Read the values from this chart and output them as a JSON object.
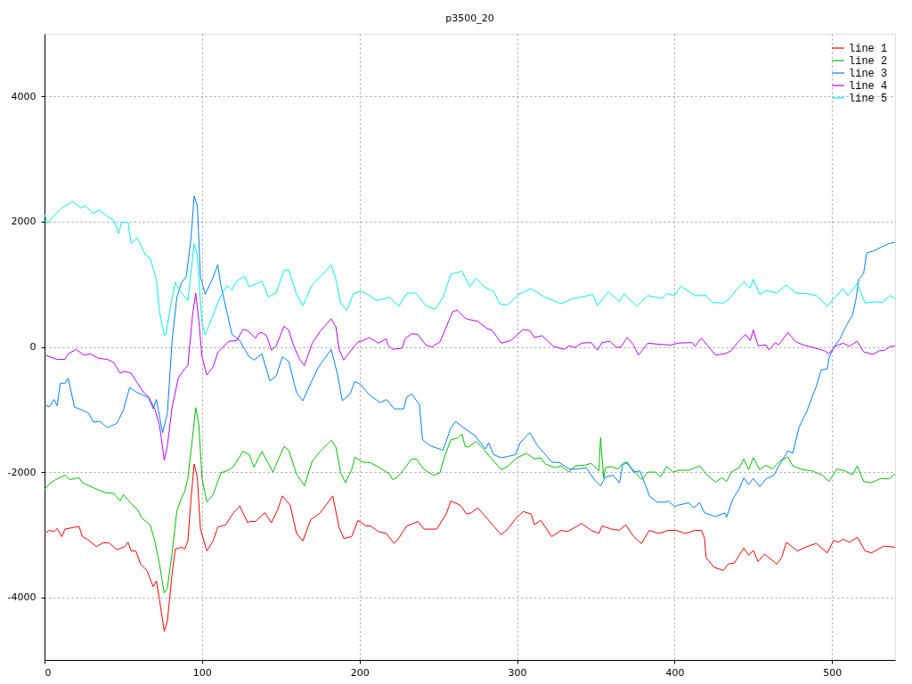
{
  "chart_data": {
    "type": "line",
    "title": "p3500_20",
    "xlim": [
      0,
      540
    ],
    "xticks": [
      0,
      100,
      200,
      300,
      400,
      500
    ],
    "ylim": [
      -5000,
      5000
    ],
    "yticks": [
      -4000,
      -2000,
      0,
      2000,
      4000
    ],
    "grid": true,
    "legend": "top right",
    "line_style": "solid",
    "series": [
      {
        "name": "line 1",
        "color": "#ff0000",
        "x": [
          0,
          3,
          6,
          8,
          11,
          13,
          19,
          22,
          24,
          27,
          33,
          37,
          41,
          46,
          51,
          53,
          55,
          58,
          61,
          65,
          69,
          71,
          73,
          76,
          78,
          81,
          83,
          87,
          89,
          91,
          93,
          95,
          97,
          99,
          103,
          107,
          110,
          115,
          120,
          124,
          129,
          130,
          134,
          137,
          140,
          144,
          148,
          151,
          156,
          160,
          164,
          169,
          175,
          183,
          187,
          190,
          195,
          199,
          204,
          207,
          212,
          217,
          222,
          225,
          230,
          237,
          241,
          249,
          255,
          258,
          264,
          268,
          271,
          275,
          281,
          285,
          290,
          294,
          300,
          304,
          309,
          311,
          315,
          322,
          328,
          332,
          337,
          341,
          347,
          352,
          354,
          360,
          365,
          369,
          374,
          379,
          384,
          390,
          396,
          401,
          407,
          413,
          417,
          419,
          420,
          425,
          431,
          434,
          438,
          444,
          447,
          450,
          453,
          457,
          465,
          468,
          471,
          478,
          484,
          490,
          497,
          501,
          504,
          507,
          511,
          516,
          521,
          525,
          533,
          540
        ],
        "values": [
          -2980,
          -2930,
          -2950,
          -2900,
          -3030,
          -2910,
          -2880,
          -2870,
          -3030,
          -3070,
          -3190,
          -3130,
          -3130,
          -3240,
          -3190,
          -3120,
          -3260,
          -3260,
          -3470,
          -3570,
          -3830,
          -3740,
          -4040,
          -4540,
          -4380,
          -3620,
          -3230,
          -3200,
          -3230,
          -3100,
          -2430,
          -1870,
          -2080,
          -2910,
          -3260,
          -3100,
          -2880,
          -2840,
          -2650,
          -2540,
          -2810,
          -2790,
          -2790,
          -2710,
          -2650,
          -2810,
          -2600,
          -2380,
          -2530,
          -2980,
          -3100,
          -2760,
          -2650,
          -2380,
          -2880,
          -3060,
          -3030,
          -2770,
          -2860,
          -2860,
          -2950,
          -2980,
          -3140,
          -3050,
          -2860,
          -2790,
          -2910,
          -2910,
          -2670,
          -2460,
          -2530,
          -2670,
          -2650,
          -2570,
          -2740,
          -2860,
          -3000,
          -2910,
          -2720,
          -2630,
          -2670,
          -2840,
          -2770,
          -3030,
          -2930,
          -2950,
          -2880,
          -2820,
          -2930,
          -2980,
          -2860,
          -2910,
          -2930,
          -2840,
          -3030,
          -3140,
          -2930,
          -2980,
          -2930,
          -2930,
          -2980,
          -2930,
          -2930,
          -3050,
          -3360,
          -3520,
          -3570,
          -3470,
          -3450,
          -3210,
          -3330,
          -3250,
          -3430,
          -3310,
          -3470,
          -3360,
          -3120,
          -3260,
          -3190,
          -3140,
          -3290,
          -3090,
          -3120,
          -3070,
          -3120,
          -3040,
          -3260,
          -3290,
          -3180,
          -3200
        ]
      },
      {
        "name": "line 2",
        "color": "#00c000",
        "x": [
          0,
          4,
          7,
          13,
          16,
          22,
          24,
          33,
          39,
          44,
          48,
          50,
          55,
          59,
          62,
          67,
          70,
          73,
          76,
          78,
          81,
          84,
          87,
          89,
          91,
          94,
          96,
          98,
          100,
          103,
          107,
          112,
          116,
          120,
          126,
          130,
          133,
          138,
          145,
          152,
          155,
          160,
          165,
          170,
          175,
          182,
          185,
          188,
          191,
          195,
          197,
          202,
          207,
          214,
          219,
          221,
          224,
          228,
          233,
          236,
          241,
          247,
          251,
          254,
          258,
          262,
          265,
          267,
          269,
          274,
          279,
          284,
          290,
          294,
          300,
          306,
          311,
          315,
          318,
          324,
          328,
          333,
          337,
          343,
          347,
          352,
          353,
          355,
          356,
          360,
          364,
          368,
          371,
          375,
          379,
          383,
          388,
          391,
          395,
          399,
          403,
          409,
          416,
          420,
          426,
          430,
          433,
          436,
          441,
          444,
          447,
          450,
          454,
          458,
          462,
          467,
          472,
          475,
          481,
          487,
          494,
          498,
          503,
          508,
          513,
          516,
          520,
          525,
          531,
          536,
          540
        ],
        "values": [
          -2270,
          -2170,
          -2120,
          -2050,
          -2120,
          -2090,
          -2170,
          -2270,
          -2330,
          -2340,
          -2460,
          -2360,
          -2500,
          -2600,
          -2740,
          -2840,
          -3100,
          -3470,
          -3930,
          -3850,
          -3290,
          -2620,
          -2410,
          -2310,
          -2100,
          -1440,
          -970,
          -1250,
          -2100,
          -2480,
          -2360,
          -2010,
          -1980,
          -1910,
          -1670,
          -1720,
          -1920,
          -1670,
          -2000,
          -1590,
          -1650,
          -2030,
          -2220,
          -1820,
          -1670,
          -1490,
          -1600,
          -2010,
          -2170,
          -1960,
          -1760,
          -1840,
          -1850,
          -1950,
          -2030,
          -2120,
          -2080,
          -1960,
          -1790,
          -1790,
          -1960,
          -2050,
          -2010,
          -1750,
          -1480,
          -1460,
          -1390,
          -1590,
          -1600,
          -1510,
          -1640,
          -1790,
          -1960,
          -1910,
          -1770,
          -1700,
          -1790,
          -1770,
          -1870,
          -1930,
          -1900,
          -2000,
          -1900,
          -1890,
          -1860,
          -1980,
          -1450,
          -2100,
          -1930,
          -1910,
          -1950,
          -1840,
          -1890,
          -2000,
          -2120,
          -2000,
          -2000,
          -2080,
          -1910,
          -2000,
          -1970,
          -1970,
          -1900,
          -2030,
          -2160,
          -2090,
          -2150,
          -2000,
          -1930,
          -1790,
          -1960,
          -1770,
          -1960,
          -1890,
          -1950,
          -1820,
          -1760,
          -1900,
          -1960,
          -1980,
          -2050,
          -2150,
          -1950,
          -1980,
          -2040,
          -1900,
          -2150,
          -2170,
          -2100,
          -2110,
          -2030
        ]
      },
      {
        "name": "line 3",
        "color": "#0080ff",
        "x": [
          0,
          3,
          6,
          8,
          10,
          13,
          15,
          19,
          24,
          28,
          31,
          35,
          40,
          46,
          50,
          54,
          59,
          66,
          69,
          71,
          73,
          75,
          78,
          81,
          84,
          87,
          90,
          93,
          95,
          97,
          99,
          102,
          106,
          110,
          112,
          119,
          124,
          127,
          130,
          133,
          138,
          143,
          147,
          151,
          155,
          160,
          164,
          169,
          174,
          182,
          186,
          189,
          194,
          197,
          201,
          206,
          213,
          217,
          222,
          228,
          230,
          233,
          238,
          240,
          245,
          253,
          258,
          261,
          266,
          273,
          280,
          282,
          285,
          290,
          294,
          299,
          302,
          308,
          313,
          318,
          322,
          327,
          333,
          338,
          344,
          349,
          353,
          356,
          361,
          365,
          367,
          370,
          374,
          378,
          382,
          384,
          389,
          394,
          396,
          400,
          402,
          409,
          412,
          416,
          419,
          426,
          432,
          433,
          437,
          441,
          444,
          447,
          450,
          454,
          458,
          463,
          466,
          472,
          475,
          479,
          482,
          484,
          487,
          490,
          493,
          497,
          498,
          501,
          505,
          509,
          513,
          515,
          517,
          520,
          522,
          526,
          531,
          536,
          540
        ],
        "values": [
          -920,
          -960,
          -840,
          -940,
          -580,
          -580,
          -500,
          -960,
          -1010,
          -1060,
          -1200,
          -1190,
          -1290,
          -1220,
          -1010,
          -650,
          -730,
          -810,
          -990,
          -840,
          -1110,
          -1370,
          -1060,
          100,
          790,
          1030,
          1120,
          1740,
          2410,
          2260,
          1120,
          840,
          1050,
          1310,
          980,
          200,
          100,
          -40,
          -160,
          -210,
          -110,
          -540,
          -470,
          -160,
          -230,
          -730,
          -860,
          -580,
          -320,
          -40,
          -440,
          -860,
          -750,
          -550,
          -610,
          -760,
          -890,
          -840,
          -990,
          -990,
          -800,
          -750,
          -920,
          -1480,
          -1580,
          -1650,
          -1290,
          -1190,
          -1290,
          -1410,
          -1630,
          -1530,
          -1720,
          -1770,
          -1750,
          -1720,
          -1530,
          -1370,
          -1580,
          -1720,
          -1840,
          -1850,
          -1950,
          -1950,
          -1930,
          -2120,
          -2220,
          -2080,
          -2050,
          -2170,
          -1890,
          -1840,
          -2000,
          -1980,
          -2240,
          -2380,
          -2480,
          -2480,
          -2460,
          -2550,
          -2530,
          -2490,
          -2570,
          -2490,
          -2650,
          -2710,
          -2650,
          -2720,
          -2430,
          -2270,
          -2090,
          -2200,
          -2100,
          -2230,
          -2110,
          -2050,
          -1910,
          -1660,
          -1700,
          -1290,
          -1130,
          -1030,
          -820,
          -630,
          -370,
          -350,
          -180,
          -10,
          130,
          340,
          510,
          740,
          1080,
          1170,
          1500,
          1530,
          1590,
          1650,
          1670
        ]
      },
      {
        "name": "line 4",
        "color": "#c000ff",
        "x": [
          0,
          8,
          13,
          15,
          20,
          25,
          29,
          34,
          40,
          44,
          48,
          51,
          55,
          59,
          63,
          66,
          70,
          73,
          76,
          78,
          81,
          85,
          89,
          91,
          94,
          96,
          98,
          100,
          103,
          107,
          110,
          117,
          122,
          126,
          129,
          134,
          136,
          138,
          141,
          144,
          147,
          152,
          155,
          158,
          162,
          165,
          170,
          175,
          182,
          185,
          187,
          190,
          196,
          199,
          204,
          206,
          212,
          217,
          218,
          221,
          227,
          229,
          233,
          237,
          242,
          246,
          251,
          254,
          259,
          262,
          267,
          269,
          275,
          281,
          284,
          290,
          296,
          304,
          308,
          311,
          316,
          323,
          330,
          333,
          337,
          341,
          347,
          351,
          354,
          359,
          363,
          366,
          370,
          374,
          377,
          381,
          383,
          391,
          398,
          402,
          411,
          413,
          417,
          422,
          426,
          432,
          436,
          440,
          445,
          448,
          450,
          453,
          458,
          460,
          464,
          466,
          472,
          477,
          482,
          488,
          495,
          498,
          502,
          507,
          511,
          516,
          520,
          526,
          530,
          533,
          537,
          540
        ],
        "values": [
          -130,
          -200,
          -200,
          -110,
          -40,
          -130,
          -110,
          -180,
          -200,
          -250,
          -420,
          -390,
          -420,
          -580,
          -730,
          -800,
          -990,
          -1250,
          -1810,
          -1580,
          -960,
          -490,
          -350,
          -300,
          510,
          860,
          410,
          -160,
          -450,
          -320,
          -90,
          90,
          100,
          280,
          260,
          140,
          220,
          230,
          180,
          -50,
          10,
          330,
          270,
          30,
          -200,
          -300,
          60,
          250,
          450,
          320,
          -40,
          -210,
          -10,
          80,
          120,
          150,
          60,
          130,
          30,
          -40,
          -20,
          130,
          210,
          200,
          30,
          0,
          80,
          250,
          560,
          590,
          460,
          440,
          410,
          290,
          270,
          60,
          100,
          280,
          260,
          150,
          180,
          10,
          -40,
          20,
          -10,
          60,
          70,
          -50,
          70,
          90,
          -10,
          0,
          150,
          30,
          -130,
          -10,
          60,
          40,
          30,
          60,
          70,
          10,
          140,
          -10,
          -130,
          -110,
          -60,
          70,
          200,
          100,
          270,
          20,
          30,
          -50,
          70,
          30,
          230,
          80,
          30,
          -10,
          -60,
          -110,
          10,
          60,
          10,
          90,
          -80,
          -120,
          -60,
          -60,
          10,
          10
        ]
      },
      {
        "name": "line 5",
        "color": "#00eeee",
        "x": [
          0,
          2,
          6,
          11,
          18,
          23,
          26,
          31,
          35,
          40,
          44,
          47,
          49,
          53,
          55,
          59,
          64,
          67,
          71,
          73,
          76,
          77,
          80,
          83,
          87,
          91,
          95,
          97,
          100,
          102,
          107,
          112,
          116,
          119,
          122,
          127,
          130,
          138,
          142,
          147,
          152,
          155,
          160,
          164,
          170,
          176,
          182,
          185,
          188,
          192,
          196,
          201,
          205,
          211,
          219,
          225,
          230,
          236,
          242,
          248,
          253,
          258,
          265,
          270,
          274,
          279,
          285,
          289,
          294,
          301,
          309,
          318,
          328,
          335,
          342,
          348,
          351,
          358,
          365,
          368,
          376,
          383,
          392,
          395,
          400,
          404,
          413,
          420,
          424,
          431,
          435,
          439,
          444,
          448,
          450,
          454,
          458,
          465,
          471,
          477,
          484,
          490,
          497,
          501,
          507,
          510,
          516,
          521,
          527,
          532,
          537,
          540
        ],
        "values": [
          2120,
          1980,
          2100,
          2220,
          2320,
          2220,
          2250,
          2130,
          2190,
          2080,
          2020,
          1810,
          1990,
          1990,
          1650,
          1740,
          1470,
          1420,
          1080,
          560,
          190,
          190,
          650,
          1030,
          860,
          740,
          1650,
          1460,
          370,
          190,
          510,
          820,
          980,
          910,
          1050,
          1130,
          960,
          1050,
          800,
          860,
          1220,
          1230,
          840,
          660,
          990,
          1150,
          1310,
          1080,
          700,
          580,
          850,
          890,
          840,
          740,
          790,
          650,
          860,
          860,
          660,
          600,
          790,
          1160,
          1210,
          960,
          1100,
          960,
          890,
          690,
          670,
          840,
          930,
          790,
          690,
          770,
          800,
          840,
          660,
          880,
          720,
          850,
          650,
          820,
          770,
          850,
          820,
          970,
          820,
          820,
          710,
          700,
          770,
          910,
          1040,
          940,
          1080,
          840,
          900,
          860,
          990,
          860,
          850,
          820,
          650,
          770,
          930,
          820,
          1010,
          700,
          720,
          710,
          820,
          770
        ]
      }
    ]
  }
}
